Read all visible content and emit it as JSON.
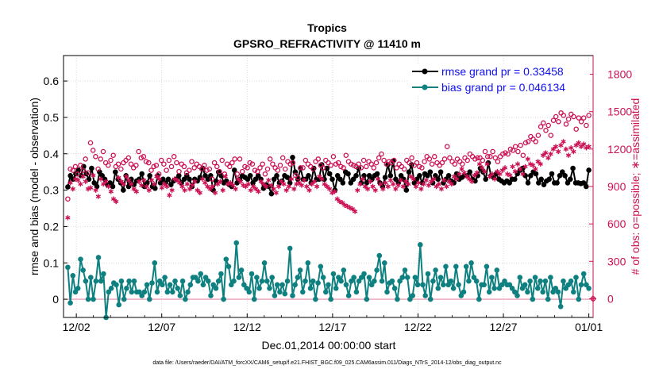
{
  "chart_data": {
    "type": "line",
    "title": "Tropics",
    "subtitle": "GPSRO_REFRACTIVITY @ 11410 m",
    "xlabel": "Dec.01,2014 00:00:00 start",
    "ylabel_left": "rmse and bias (model - observation)",
    "ylabel_right": "# of obs: o=possible; ∗=assimilated",
    "footer": "data file: /Users/raeder/DAI/ATM_forcXX/CAM6_setup/f.e21.FHIST_BGC.f09_025.CAM6assim.011/Diags_NTrS_2014-12/obs_diag_output.nc",
    "x_ticks": [
      2,
      7,
      12,
      17,
      22,
      27,
      32
    ],
    "x_tick_labels": [
      "12/02",
      "12/07",
      "12/12",
      "12/17",
      "12/22",
      "12/27",
      "01/01"
    ],
    "xlim": [
      1.25,
      32.25
    ],
    "left_ylim": [
      -0.05,
      0.67
    ],
    "left_ticks": [
      0,
      0.1,
      0.2,
      0.3,
      0.4,
      0.5,
      0.6
    ],
    "left_tick_labels": [
      "0",
      "0.1",
      "0.2",
      "0.3",
      "0.4",
      "0.5",
      "0.6"
    ],
    "right_ylim": [
      -150,
      1950
    ],
    "right_ticks": [
      0,
      300,
      600,
      900,
      1200,
      1500,
      1800
    ],
    "right_tick_labels": [
      "0",
      "300",
      "600",
      "900",
      "1200",
      "1500",
      "1800"
    ],
    "legend_position": "top-right",
    "series": [
      {
        "name": "rmse grand pr = 0.33458",
        "color": "#000000",
        "axis": "left",
        "style": "line-dot",
        "values": [
          0.309,
          0.34,
          0.33,
          0.345,
          0.355,
          0.34,
          0.365,
          0.345,
          0.33,
          0.36,
          0.32,
          0.31,
          0.35,
          0.34,
          0.33,
          0.315,
          0.32,
          0.31,
          0.35,
          0.33,
          0.32,
          0.3,
          0.34,
          0.31,
          0.33,
          0.315,
          0.325,
          0.33,
          0.345,
          0.31,
          0.32,
          0.34,
          0.31,
          0.305,
          0.34,
          0.32,
          0.33,
          0.32,
          0.33,
          0.315,
          0.325,
          0.33,
          0.34,
          0.32,
          0.33,
          0.34,
          0.33,
          0.31,
          0.33,
          0.325,
          0.335,
          0.36,
          0.34,
          0.33,
          0.34,
          0.3,
          0.325,
          0.35,
          0.34,
          0.32,
          0.325,
          0.315,
          0.31,
          0.355,
          0.32,
          0.33,
          0.34,
          0.335,
          0.33,
          0.34,
          0.32,
          0.33,
          0.34,
          0.33,
          0.305,
          0.315,
          0.31,
          0.29,
          0.33,
          0.34,
          0.32,
          0.325,
          0.34,
          0.335,
          0.32,
          0.39,
          0.35,
          0.33,
          0.36,
          0.33,
          0.33,
          0.34,
          0.32,
          0.36,
          0.33,
          0.33,
          0.37,
          0.33,
          0.36,
          0.345,
          0.33,
          0.3,
          0.34,
          0.33,
          0.32,
          0.35,
          0.345,
          0.32,
          0.33,
          0.34,
          0.36,
          0.32,
          0.34,
          0.32,
          0.34,
          0.33,
          0.34,
          0.345,
          0.32,
          0.31,
          0.335,
          0.37,
          0.34,
          0.38,
          0.33,
          0.32,
          0.34,
          0.33,
          0.3,
          0.35,
          0.37,
          0.32,
          0.33,
          0.34,
          0.32,
          0.345,
          0.34,
          0.35,
          0.32,
          0.34,
          0.33,
          0.35,
          0.32,
          0.33,
          0.34,
          0.325,
          0.32,
          0.345,
          0.33,
          0.335,
          0.34,
          0.34,
          0.35,
          0.33,
          0.325,
          0.34,
          0.36,
          0.35,
          0.33,
          0.375,
          0.34,
          0.335,
          0.345,
          0.33,
          0.325,
          0.32,
          0.325,
          0.32,
          0.33,
          0.33,
          0.345,
          0.355,
          0.36,
          0.34,
          0.32,
          0.34,
          0.35,
          0.345,
          0.32,
          0.33,
          0.315,
          0.325,
          0.33,
          0.345,
          0.32,
          0.32,
          0.34,
          0.35,
          0.34,
          0.32,
          0.33,
          0.36,
          0.32,
          0.32,
          0.318,
          0.32,
          0.31,
          0.355
        ]
      },
      {
        "name": "bias grand pr = 0.046134",
        "color": "#0f8080",
        "axis": "left",
        "style": "line-dot",
        "values": [
          0.088,
          -0.01,
          0.065,
          0.02,
          0.03,
          0.11,
          0.08,
          0.05,
          0.0,
          0.06,
          0.0,
          0.05,
          0.115,
          0.05,
          0.07,
          -0.05,
          0.02,
          0.03,
          0.045,
          0.04,
          -0.015,
          0.05,
          0.0,
          0.03,
          0.05,
          0.02,
          0.05,
          0.02,
          0.02,
          0.01,
          0.02,
          0.04,
          0.0,
          0.045,
          0.1,
          0.02,
          0.05,
          0.04,
          0.06,
          0.02,
          0.04,
          0.02,
          0.05,
          0.03,
          0.01,
          0.05,
          0.0,
          0.02,
          0.04,
          0.06,
          0.06,
          0.05,
          0.07,
          0.04,
          0.06,
          0.05,
          0.01,
          0.04,
          0.03,
          0.05,
          0.07,
          0.0,
          0.11,
          0.09,
          0.04,
          0.05,
          0.155,
          0.06,
          0.08,
          0.04,
          0.03,
          0.02,
          0.07,
          0.0,
          0.06,
          0.03,
          0.05,
          0.1,
          0.05,
          0.03,
          0.06,
          0.01,
          0.04,
          0.02,
          0.04,
          0.015,
          0.05,
          0.14,
          0.01,
          0.04,
          0.06,
          0.08,
          0.02,
          0.05,
          0.1,
          0.03,
          0.05,
          0.0,
          0.045,
          0.09,
          0.06,
          0.02,
          0.04,
          0.0,
          0.07,
          0.03,
          0.06,
          0.05,
          0.08,
          0.04,
          0.01,
          0.05,
          0.06,
          0.02,
          0.05,
          0.06,
          0.07,
          0.0,
          0.06,
          0.04,
          0.05,
          0.08,
          0.12,
          0.05,
          0.1,
          0.02,
          0.045,
          0.05,
          0.03,
          0.0,
          0.05,
          0.06,
          0.08,
          0.06,
          0.0,
          0.01,
          0.06,
          0.04,
          0.15,
          0.04,
          0.01,
          0.07,
          0.0,
          0.05,
          0.08,
          0.03,
          0.06,
          0.04,
          0.09,
          0.04,
          0.05,
          0.03,
          0.09,
          0.04,
          0.01,
          0.02,
          0.09,
          0.05,
          0.1,
          0.06,
          0.05,
          0.0,
          0.04,
          0.04,
          0.09,
          0.02,
          0.06,
          0.03,
          0.08,
          0.03,
          0.04,
          0.05,
          0.04,
          0.04,
          0.03,
          0.02,
          0.01,
          0.06,
          0.03,
          0.04,
          0.02,
          0.05,
          0.0,
          0.06,
          0.03,
          0.05,
          0.02,
          0.05,
          0.0,
          0.06,
          0.02,
          0.03,
          0.02,
          -0.02,
          0.05,
          0.03,
          0.04,
          0.05,
          0.02,
          0.06,
          0.0,
          0.04,
          0.07,
          0.04,
          0.03
        ]
      },
      {
        "name": "possible obs",
        "color": "#cc1155",
        "axis": "right",
        "style": "circle",
        "values": [
          800,
          1040,
          1030,
          1060,
          1000,
          1070,
          1030,
          1120,
          1010,
          1250,
          1190,
          1140,
          1040,
          1120,
          1180,
          1090,
          1070,
          1110,
          1150,
          1060,
          1080,
          1040,
          1090,
          1110,
          1130,
          1080,
          1050,
          1070,
          1180,
          1130,
          1140,
          1100,
          1090,
          1030,
          1060,
          1070,
          1000,
          1110,
          1080,
          1030,
          1110,
          1060,
          1140,
          1090,
          1020,
          1080,
          1060,
          1010,
          1030,
          1100,
          1050,
          1080,
          1060,
          1040,
          1070,
          1030,
          1040,
          960,
          1090,
          1060,
          1020,
          1110,
          1000,
          1080,
          1060,
          1090,
          1120,
          1000,
          1120,
          1020,
          1060,
          1050,
          1090,
          1080,
          1030,
          1020,
          1050,
          1080,
          1000,
          1040,
          1120,
          1080,
          1050,
          1030,
          1070,
          1130,
          1040,
          1100,
          1080,
          1090,
          990,
          970,
          1050,
          1050,
          1110,
          1080,
          1060,
          1040,
          1100,
          1120,
          1070,
          1050,
          1110,
          1090,
          1070,
          1140,
          1080,
          1090,
          1060,
          1050,
          1150,
          1100,
          1080,
          1070,
          1060,
          1080,
          1050,
          1110,
          1060,
          1100,
          1080,
          1050,
          1090,
          1130,
          1160,
          1110,
          1080,
          1100,
          1090,
          1110,
          1050,
          1080,
          1060,
          1040,
          1110,
          1090,
          1130,
          1070,
          1090,
          1060,
          1050,
          1100,
          1140,
          1120,
          1080,
          1140,
          1090,
          1070,
          1090,
          1120,
          1220,
          1130,
          1100,
          1080,
          1120,
          1100,
          1080,
          1130,
          1110,
          1160,
          1140,
          1120,
          1130,
          1130,
          1110,
          1180,
          1140,
          1140,
          1180,
          1130,
          1100,
          1140,
          1160,
          1170,
          1160,
          1200,
          1190,
          1220,
          1180,
          1230,
          1150,
          1250,
          1260,
          1300,
          1280,
          1260,
          1310,
          1380,
          1410,
          1350,
          1390,
          1310,
          1430,
          1460,
          1420,
          1490,
          1470,
          1400,
          1440,
          1480,
          1460,
          1360,
          1450,
          1420,
          1450,
          1390,
          1470
        ]
      },
      {
        "name": "assimilated obs",
        "color": "#cc1155",
        "axis": "right",
        "style": "asterisk",
        "values": [
          650,
          930,
          880,
          960,
          950,
          920,
          980,
          940,
          880,
          890,
          990,
          870,
          820,
          960,
          920,
          940,
          900,
          860,
          800,
          780,
          970,
          940,
          920,
          980,
          950,
          920,
          880,
          860,
          940,
          910,
          950,
          900,
          870,
          950,
          920,
          980,
          960,
          890,
          920,
          900,
          830,
          870,
          960,
          950,
          930,
          900,
          870,
          920,
          880,
          910,
          940,
          870,
          850,
          960,
          930,
          900,
          880,
          900,
          850,
          920,
          940,
          870,
          980,
          920,
          930,
          910,
          880,
          960,
          940,
          910,
          900,
          920,
          870,
          900,
          880,
          860,
          940,
          920,
          900,
          950,
          910,
          880,
          850,
          900,
          940,
          920,
          870,
          900,
          960,
          880,
          920,
          930,
          910,
          950,
          900,
          870,
          920,
          940,
          900,
          980,
          960,
          920,
          900,
          880,
          850,
          860,
          800,
          780,
          770,
          750,
          740,
          730,
          720,
          700,
          870,
          920,
          960,
          900,
          880,
          940,
          900,
          870,
          960,
          920,
          880,
          930,
          900,
          950,
          920,
          880,
          910,
          950,
          900,
          940,
          920,
          980,
          960,
          900,
          930,
          880,
          920,
          950,
          910,
          940,
          960,
          900,
          920,
          880,
          950,
          900,
          940,
          920,
          980,
          960,
          1000,
          1040,
          1010,
          980,
          960,
          940,
          990,
          1010,
          1080,
          1050,
          1020,
          1080,
          980,
          1000,
          960,
          1020,
          1000,
          1030,
          1050,
          1000,
          990,
          1060,
          1020,
          1080,
          1040,
          1000,
          1060,
          1120,
          1080,
          1070,
          1040,
          1100,
          1080,
          1150,
          1170,
          1130,
          1160,
          1200,
          1220,
          1180,
          1230,
          1260,
          1200,
          1150,
          1210,
          1180,
          1230,
          1250,
          1220,
          1240,
          1210,
          1220
        ]
      }
    ]
  }
}
